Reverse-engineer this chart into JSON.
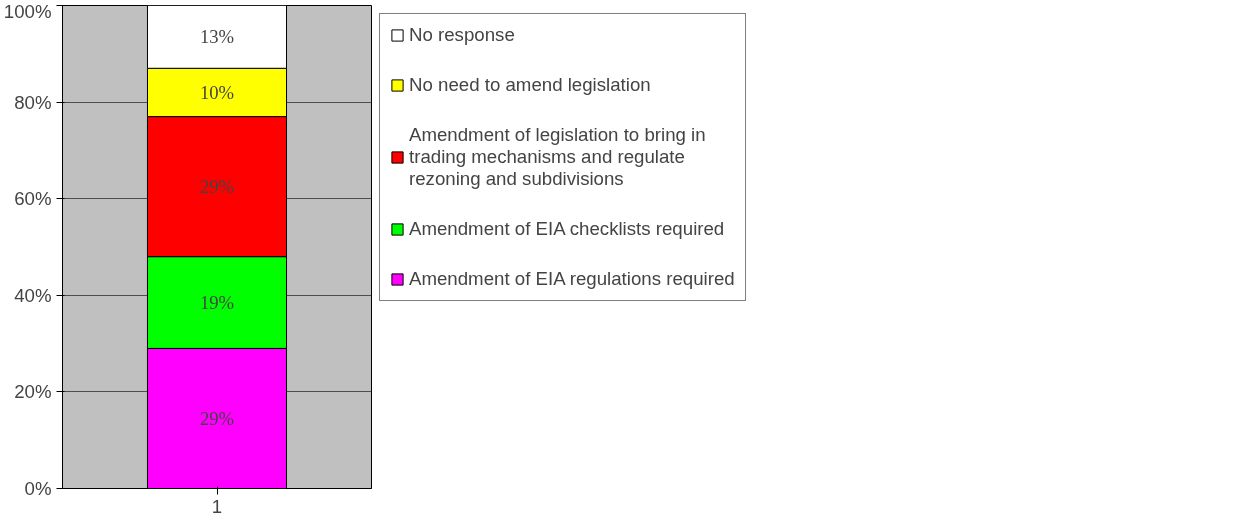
{
  "chart_data": {
    "type": "bar",
    "stacked": true,
    "categories": [
      "1"
    ],
    "series": [
      {
        "name": "Amendment of EIA regulations required",
        "color": "#ff00ff",
        "values": [
          29
        ],
        "value_labels": [
          "29%"
        ]
      },
      {
        "name": "Amendment of EIA checklists required",
        "color": "#00ff00",
        "values": [
          19
        ],
        "value_labels": [
          "19%"
        ]
      },
      {
        "name": "Amendment of legislation to bring in trading mechanisms and regulate rezoning and subdivisions",
        "color": "#ff0000",
        "values": [
          29
        ],
        "value_labels": [
          "29%"
        ]
      },
      {
        "name": "No need to amend legislation",
        "color": "#ffff00",
        "values": [
          10
        ],
        "value_labels": [
          "10%"
        ]
      },
      {
        "name": "No response",
        "color": "#ffffff",
        "values": [
          13
        ],
        "value_labels": [
          "13%"
        ]
      }
    ],
    "ylim": [
      0,
      100
    ],
    "yticks": [
      {
        "value": 0,
        "label": "0%"
      },
      {
        "value": 20,
        "label": "20%"
      },
      {
        "value": 40,
        "label": "40%"
      },
      {
        "value": 60,
        "label": "60%"
      },
      {
        "value": 80,
        "label": "80%"
      },
      {
        "value": 100,
        "label": "100%"
      }
    ],
    "grid": "y",
    "legend": "right"
  }
}
